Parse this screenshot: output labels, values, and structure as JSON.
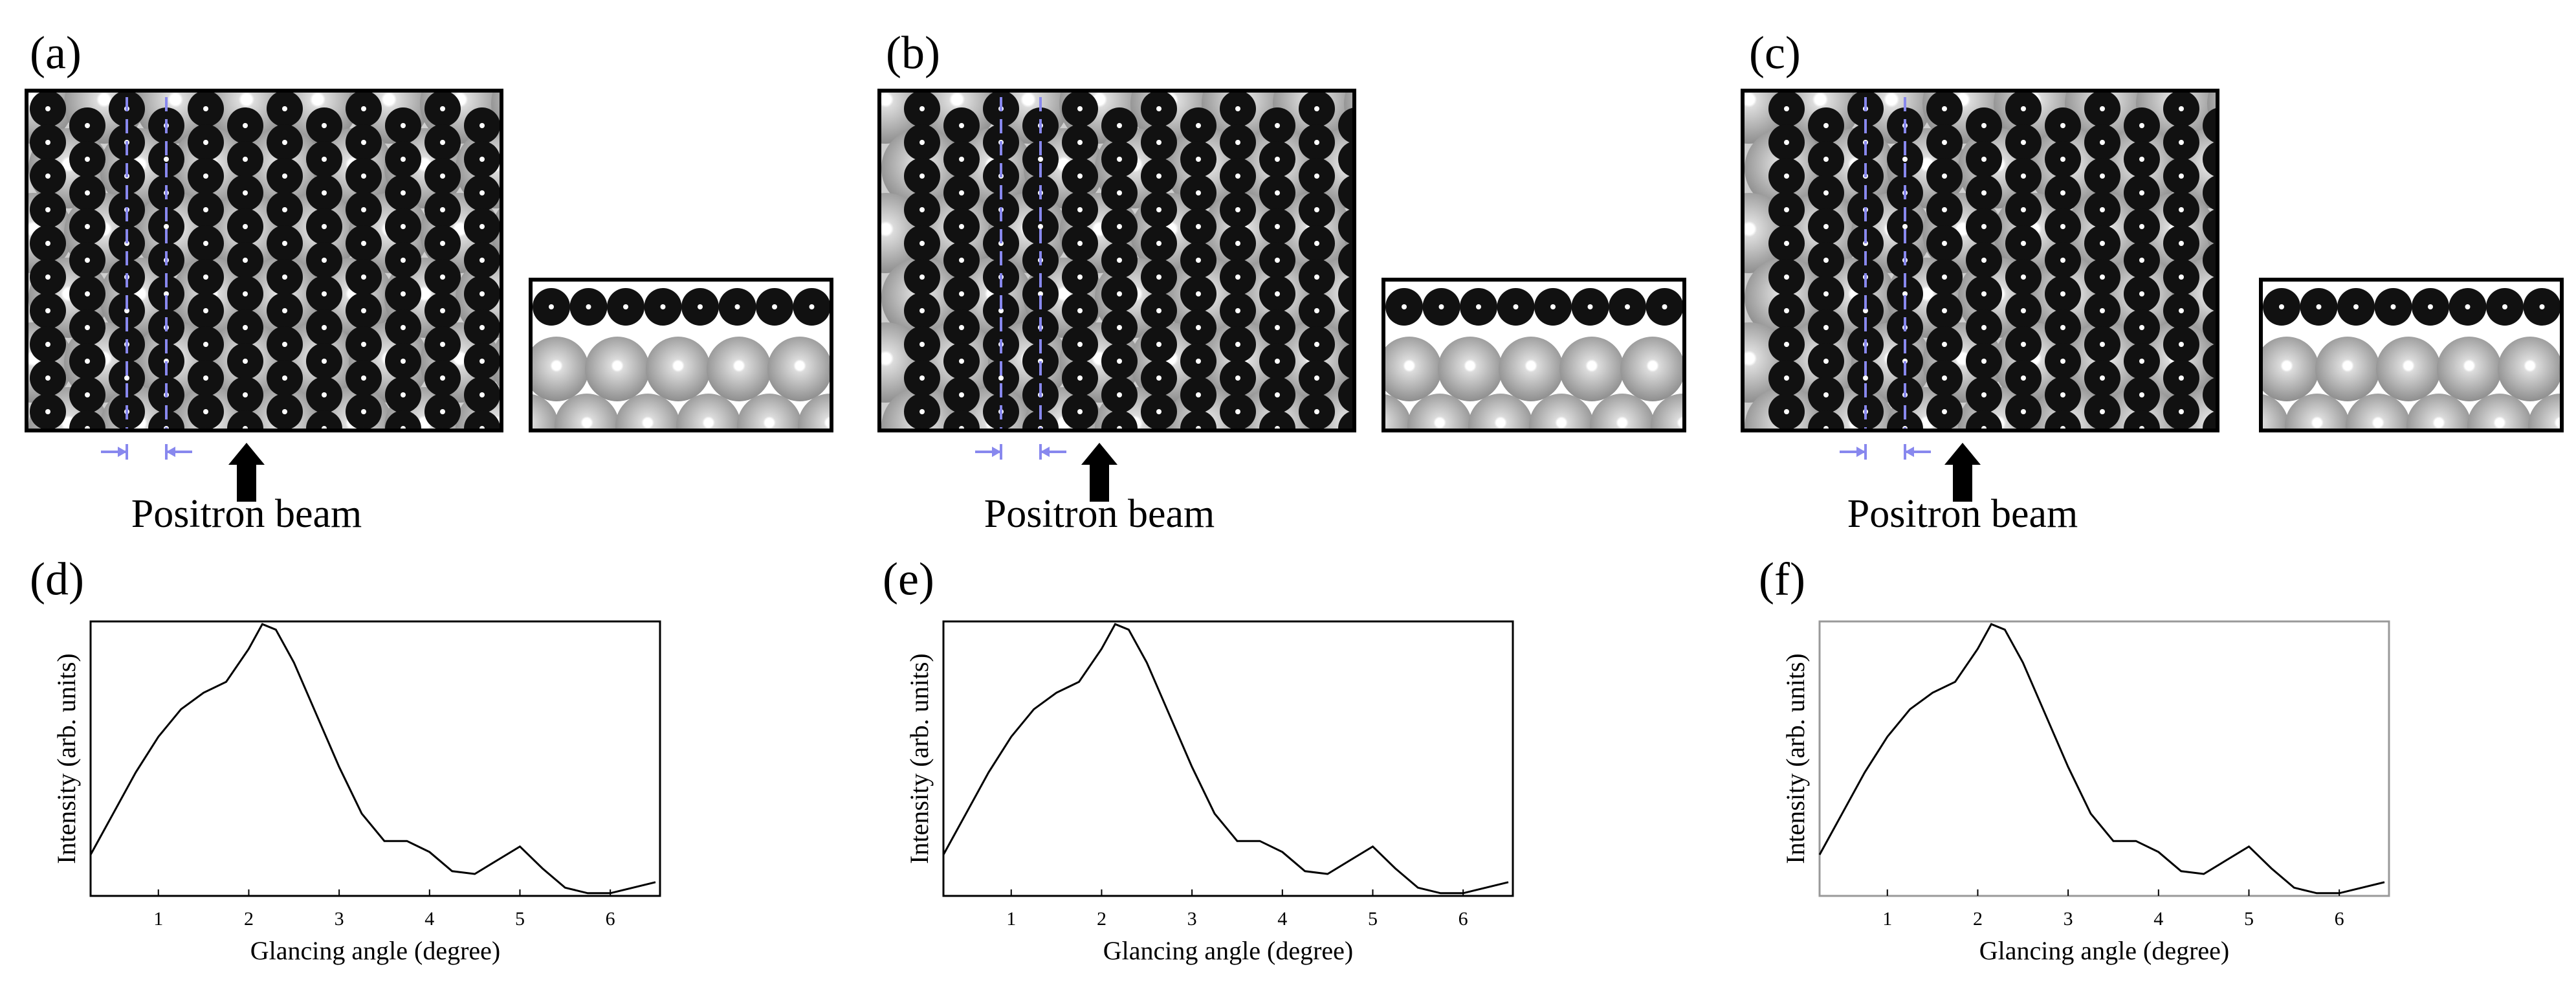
{
  "panels": [
    {
      "label": "(a)",
      "caption": "Positron beam"
    },
    {
      "label": "(b)",
      "caption": "Positron beam"
    },
    {
      "label": "(c)",
      "caption": "Positron beam"
    }
  ],
  "chart_data": [
    {
      "type": "line",
      "label": "(d)",
      "xlabel": "Glancing angle (degree)",
      "ylabel": "Intensity (arb. units)",
      "x": [
        0.25,
        0.5,
        0.75,
        1.0,
        1.25,
        1.5,
        1.75,
        2.0,
        2.15,
        2.3,
        2.5,
        2.75,
        3.0,
        3.25,
        3.5,
        3.75,
        4.0,
        4.25,
        4.5,
        4.75,
        5.0,
        5.25,
        5.5,
        5.75,
        6.0,
        6.25,
        6.5
      ],
      "values": [
        0.15,
        0.3,
        0.45,
        0.58,
        0.68,
        0.74,
        0.78,
        0.9,
        0.99,
        0.97,
        0.85,
        0.66,
        0.47,
        0.3,
        0.2,
        0.2,
        0.16,
        0.09,
        0.08,
        0.13,
        0.18,
        0.1,
        0.03,
        0.01,
        0.01,
        0.03,
        0.05
      ],
      "color": "#000000",
      "frame_color": "#000000",
      "xlim": [
        0.25,
        6.55
      ],
      "ylim": [
        0,
        1
      ],
      "xticks": [
        1,
        2,
        3,
        4,
        5,
        6
      ]
    },
    {
      "type": "line",
      "label": "(e)",
      "xlabel": "Glancing angle (degree)",
      "ylabel": "Intensity (arb. units)",
      "x": [
        0.25,
        0.5,
        0.75,
        1.0,
        1.25,
        1.5,
        1.75,
        2.0,
        2.15,
        2.3,
        2.5,
        2.75,
        3.0,
        3.25,
        3.5,
        3.75,
        4.0,
        4.25,
        4.5,
        4.75,
        5.0,
        5.25,
        5.5,
        5.75,
        6.0,
        6.25,
        6.5
      ],
      "values": [
        0.15,
        0.3,
        0.45,
        0.58,
        0.68,
        0.74,
        0.78,
        0.9,
        0.99,
        0.97,
        0.85,
        0.66,
        0.47,
        0.3,
        0.2,
        0.2,
        0.16,
        0.09,
        0.08,
        0.13,
        0.18,
        0.1,
        0.03,
        0.01,
        0.01,
        0.03,
        0.05
      ],
      "color": "#000000",
      "frame_color": "#000000",
      "xlim": [
        0.25,
        6.55
      ],
      "ylim": [
        0,
        1
      ],
      "xticks": [
        1,
        2,
        3,
        4,
        5,
        6
      ]
    },
    {
      "type": "line",
      "label": "(f)",
      "xlabel": "Glancing angle (degree)",
      "ylabel": "Intensity (arb. units)",
      "x": [
        0.25,
        0.5,
        0.75,
        1.0,
        1.25,
        1.5,
        1.75,
        2.0,
        2.15,
        2.3,
        2.5,
        2.75,
        3.0,
        3.25,
        3.5,
        3.75,
        4.0,
        4.25,
        4.5,
        4.75,
        5.0,
        5.25,
        5.5,
        5.75,
        6.0,
        6.25,
        6.5
      ],
      "values": [
        0.15,
        0.3,
        0.45,
        0.58,
        0.68,
        0.74,
        0.78,
        0.9,
        0.99,
        0.97,
        0.85,
        0.66,
        0.47,
        0.3,
        0.2,
        0.2,
        0.16,
        0.09,
        0.08,
        0.13,
        0.18,
        0.1,
        0.03,
        0.01,
        0.01,
        0.03,
        0.05
      ],
      "color": "#000000",
      "frame_color": "#999999",
      "xlim": [
        0.25,
        6.55
      ],
      "ylim": [
        0,
        1
      ],
      "xticks": [
        1,
        2,
        3,
        4,
        5,
        6
      ]
    }
  ]
}
